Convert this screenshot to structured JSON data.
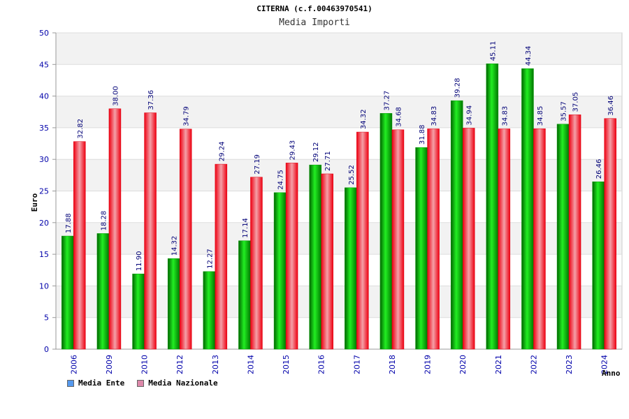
{
  "title": "CITERNA (c.f.00463970541)",
  "subtitle": "Media Importi",
  "chart_data": {
    "type": "bar",
    "xlabel": "Anno",
    "ylabel": "Euro",
    "ylim": [
      0,
      50
    ],
    "yticks": [
      0,
      5,
      10,
      15,
      20,
      25,
      30,
      35,
      40,
      45,
      50
    ],
    "categories": [
      "2006",
      "2009",
      "2010",
      "2012",
      "2013",
      "2014",
      "2015",
      "2016",
      "2017",
      "2018",
      "2019",
      "2020",
      "2021",
      "2022",
      "2023",
      "2024"
    ],
    "series": [
      {
        "name": "Media Ente",
        "color": "#00cc00",
        "legend_color": "#5599ee",
        "values": [
          17.88,
          18.28,
          11.9,
          14.32,
          12.27,
          17.14,
          24.75,
          29.12,
          25.52,
          37.27,
          31.88,
          39.28,
          45.11,
          44.34,
          35.57,
          26.46
        ],
        "labels": [
          "17.88",
          "18.28",
          "11.90",
          "14.32",
          "12.27",
          "17.14",
          "24.75",
          "29.12",
          "25.52",
          "37.27",
          "31.88",
          "39.28",
          "45.11",
          "44.34",
          "35.57",
          "26.46"
        ]
      },
      {
        "name": "Media Nazionale",
        "color": "#ee2233",
        "legend_color": "#dd88aa",
        "values": [
          32.82,
          38.0,
          37.36,
          34.79,
          29.24,
          27.19,
          29.43,
          27.71,
          34.32,
          34.68,
          34.83,
          34.94,
          34.83,
          34.85,
          37.05,
          36.46
        ],
        "labels": [
          "32.82",
          "38.00",
          "37.36",
          "34.79",
          "29.24",
          "27.19",
          "29.43",
          "27.71",
          "34.32",
          "34.68",
          "34.83",
          "34.94",
          "34.83",
          "34.85",
          "37.05",
          "36.46"
        ]
      }
    ],
    "grid": true,
    "legend_position": "bottom-left"
  }
}
